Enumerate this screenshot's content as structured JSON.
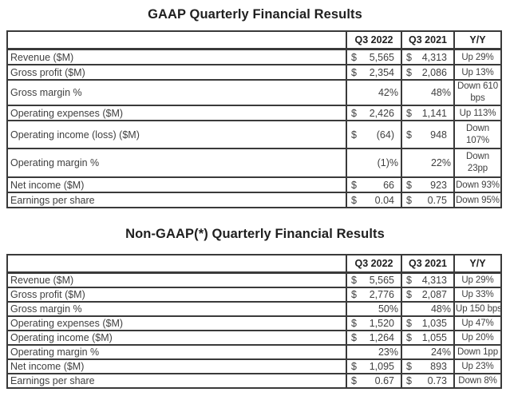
{
  "tables": [
    {
      "title": "GAAP Quarterly Financial Results",
      "columns": [
        "Q3 2022",
        "Q3 2021",
        "Y/Y"
      ],
      "rows": [
        {
          "label": "Revenue ($M)",
          "c2022": {
            "sym": "$",
            "val": "5,565"
          },
          "c2021": {
            "sym": "$",
            "val": "4,313"
          },
          "yoy": "Up 29%"
        },
        {
          "label": "Gross profit ($M)",
          "c2022": {
            "sym": "$",
            "val": "2,354"
          },
          "c2021": {
            "sym": "$",
            "val": "2,086"
          },
          "yoy": "Up 13%"
        },
        {
          "label": "Gross margin %",
          "c2022": {
            "sym": "",
            "val": "42%"
          },
          "c2021": {
            "sym": "",
            "val": "48%"
          },
          "yoy": "Down 610 bps"
        },
        {
          "label": "Operating expenses ($M)",
          "c2022": {
            "sym": "$",
            "val": "2,426"
          },
          "c2021": {
            "sym": "$",
            "val": "1,141"
          },
          "yoy": "Up 113%"
        },
        {
          "label": "Operating income (loss) ($M)",
          "c2022": {
            "sym": "$",
            "val": "(64)"
          },
          "c2021": {
            "sym": "$",
            "val": "948"
          },
          "yoy": "Down 107%"
        },
        {
          "label": "Operating margin %",
          "c2022": {
            "sym": "",
            "val": "(1)%"
          },
          "c2021": {
            "sym": "",
            "val": "22%"
          },
          "yoy": "Down 23pp"
        },
        {
          "label": "Net income ($M)",
          "c2022": {
            "sym": "$",
            "val": "66"
          },
          "c2021": {
            "sym": "$",
            "val": "923"
          },
          "yoy": "Down 93%"
        },
        {
          "label": "Earnings per share",
          "c2022": {
            "sym": "$",
            "val": "0.04"
          },
          "c2021": {
            "sym": "$",
            "val": "0.75"
          },
          "yoy": "Down 95%"
        }
      ]
    },
    {
      "title": "Non-GAAP(*) Quarterly Financial Results",
      "columns": [
        "Q3 2022",
        "Q3 2021",
        "Y/Y"
      ],
      "rows": [
        {
          "label": "Revenue ($M)",
          "c2022": {
            "sym": "$",
            "val": "5,565"
          },
          "c2021": {
            "sym": "$",
            "val": "4,313"
          },
          "yoy": "Up 29%"
        },
        {
          "label": "Gross profit ($M)",
          "c2022": {
            "sym": "$",
            "val": "2,776"
          },
          "c2021": {
            "sym": "$",
            "val": "2,087"
          },
          "yoy": "Up 33%"
        },
        {
          "label": "Gross margin %",
          "c2022": {
            "sym": "",
            "val": "50%"
          },
          "c2021": {
            "sym": "",
            "val": "48%"
          },
          "yoy": "Up 150 bps"
        },
        {
          "label": "Operating expenses ($M)",
          "c2022": {
            "sym": "$",
            "val": "1,520"
          },
          "c2021": {
            "sym": "$",
            "val": "1,035"
          },
          "yoy": "Up 47%"
        },
        {
          "label": "Operating income ($M)",
          "c2022": {
            "sym": "$",
            "val": "1,264"
          },
          "c2021": {
            "sym": "$",
            "val": "1,055"
          },
          "yoy": "Up 20%"
        },
        {
          "label": "Operating margin %",
          "c2022": {
            "sym": "",
            "val": "23%"
          },
          "c2021": {
            "sym": "",
            "val": "24%"
          },
          "yoy": "Down 1pp"
        },
        {
          "label": "Net income ($M)",
          "c2022": {
            "sym": "$",
            "val": "1,095"
          },
          "c2021": {
            "sym": "$",
            "val": "893"
          },
          "yoy": "Up 23%"
        },
        {
          "label": "Earnings per share",
          "c2022": {
            "sym": "$",
            "val": "0.67"
          },
          "c2021": {
            "sym": "$",
            "val": "0.73"
          },
          "yoy": "Down 8%"
        }
      ]
    }
  ]
}
